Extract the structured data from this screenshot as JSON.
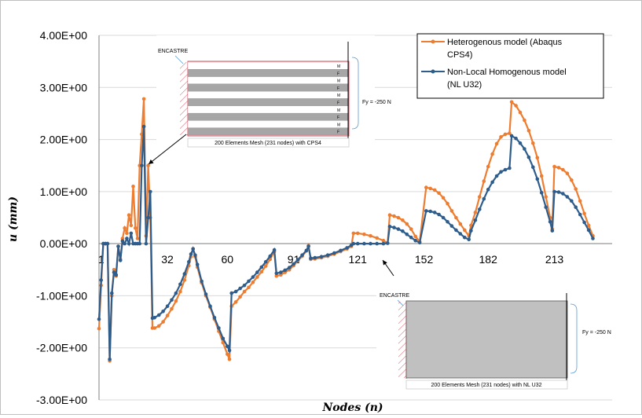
{
  "chart_data": {
    "type": "line",
    "xlabel": "Nodes (n)",
    "ylabel": "u (mm)",
    "ylim": [
      -3,
      4
    ],
    "xlim": [
      0,
      240
    ],
    "yticks": [
      {
        "v": 4,
        "label": "4.00E+00"
      },
      {
        "v": 3,
        "label": "3.00E+00"
      },
      {
        "v": 2,
        "label": "2.00E+00"
      },
      {
        "v": 1,
        "label": "1.00E+00"
      },
      {
        "v": 0,
        "label": "0.00E+00"
      },
      {
        "v": -1,
        "label": "-1.00E+00"
      },
      {
        "v": -2,
        "label": "-2.00E+00"
      },
      {
        "v": -3,
        "label": "-3.00E+00"
      }
    ],
    "xticks": [
      {
        "v": 1,
        "label": "1"
      },
      {
        "v": 32,
        "label": "32"
      },
      {
        "v": 60,
        "label": "60"
      },
      {
        "v": 91,
        "label": "91"
      },
      {
        "v": 121,
        "label": "121"
      },
      {
        "v": 152,
        "label": "152"
      },
      {
        "v": 182,
        "label": "182"
      },
      {
        "v": 213,
        "label": "213"
      }
    ],
    "grid": "horizontal",
    "legend_position": "top-right",
    "series": [
      {
        "name": "Heterogenous model (Abaqus CPS4)",
        "color": "#ED7D31",
        "points": [
          [
            0,
            -1.63
          ],
          [
            1,
            -0.8
          ],
          [
            2,
            0
          ],
          [
            3,
            0
          ],
          [
            4,
            0
          ],
          [
            5,
            -2.25
          ],
          [
            6,
            -1.0
          ],
          [
            7,
            -0.5
          ],
          [
            8,
            -0.62
          ],
          [
            9,
            -0.05
          ],
          [
            10,
            -0.3
          ],
          [
            11,
            0.1
          ],
          [
            12,
            0.3
          ],
          [
            13,
            0.2
          ],
          [
            14,
            0.55
          ],
          [
            15,
            0.35
          ],
          [
            16,
            1.1
          ],
          [
            17,
            0.3
          ],
          [
            18,
            0.1
          ],
          [
            19,
            1.5
          ],
          [
            20,
            2.1
          ],
          [
            21,
            2.78
          ],
          [
            22,
            0.15
          ],
          [
            23,
            1.5
          ],
          [
            24,
            0.5
          ],
          [
            25,
            -1.62
          ],
          [
            26,
            -1.62
          ],
          [
            28,
            -1.58
          ],
          [
            30,
            -1.5
          ],
          [
            32,
            -1.38
          ],
          [
            34,
            -1.25
          ],
          [
            36,
            -1.1
          ],
          [
            38,
            -0.92
          ],
          [
            40,
            -0.7
          ],
          [
            42,
            -0.42
          ],
          [
            43,
            -0.25
          ],
          [
            44,
            -0.1
          ],
          [
            45,
            -0.25
          ],
          [
            46,
            -0.45
          ],
          [
            48,
            -0.75
          ],
          [
            50,
            -1.0
          ],
          [
            52,
            -1.22
          ],
          [
            54,
            -1.45
          ],
          [
            56,
            -1.68
          ],
          [
            58,
            -1.9
          ],
          [
            60,
            -2.12
          ],
          [
            61,
            -2.22
          ],
          [
            62,
            -1.2
          ],
          [
            64,
            -1.12
          ],
          [
            66,
            -1.02
          ],
          [
            68,
            -0.92
          ],
          [
            70,
            -0.84
          ],
          [
            72,
            -0.74
          ],
          [
            74,
            -0.64
          ],
          [
            76,
            -0.54
          ],
          [
            78,
            -0.43
          ],
          [
            80,
            -0.3
          ],
          [
            82,
            -0.15
          ],
          [
            83,
            -0.62
          ],
          [
            85,
            -0.6
          ],
          [
            87,
            -0.55
          ],
          [
            89,
            -0.5
          ],
          [
            91,
            -0.42
          ],
          [
            93,
            -0.33
          ],
          [
            95,
            -0.24
          ],
          [
            97,
            -0.14
          ],
          [
            98,
            -0.04
          ],
          [
            99,
            -0.3
          ],
          [
            101,
            -0.29
          ],
          [
            104,
            -0.27
          ],
          [
            107,
            -0.24
          ],
          [
            110,
            -0.2
          ],
          [
            113,
            -0.15
          ],
          [
            116,
            -0.1
          ],
          [
            118,
            -0.05
          ],
          [
            119,
            0.2
          ],
          [
            121,
            0.2
          ],
          [
            124,
            0.18
          ],
          [
            127,
            0.15
          ],
          [
            130,
            0.11
          ],
          [
            133,
            0.06
          ],
          [
            135,
            0.01
          ],
          [
            136,
            0.55
          ],
          [
            138,
            0.53
          ],
          [
            140,
            0.5
          ],
          [
            142,
            0.45
          ],
          [
            144,
            0.38
          ],
          [
            146,
            0.28
          ],
          [
            148,
            0.14
          ],
          [
            150,
            0.04
          ],
          [
            153,
            1.08
          ],
          [
            155,
            1.06
          ],
          [
            157,
            1.03
          ],
          [
            159,
            0.97
          ],
          [
            161,
            0.88
          ],
          [
            163,
            0.77
          ],
          [
            165,
            0.63
          ],
          [
            167,
            0.5
          ],
          [
            169,
            0.38
          ],
          [
            171,
            0.26
          ],
          [
            173,
            0.15
          ],
          [
            174,
            0.35
          ],
          [
            176,
            0.6
          ],
          [
            178,
            0.9
          ],
          [
            180,
            1.2
          ],
          [
            182,
            1.48
          ],
          [
            184,
            1.72
          ],
          [
            186,
            1.92
          ],
          [
            188,
            2.05
          ],
          [
            190,
            2.1
          ],
          [
            192,
            2.12
          ],
          [
            193,
            2.72
          ],
          [
            195,
            2.65
          ],
          [
            197,
            2.52
          ],
          [
            199,
            2.37
          ],
          [
            201,
            2.17
          ],
          [
            203,
            1.93
          ],
          [
            205,
            1.65
          ],
          [
            207,
            1.3
          ],
          [
            209,
            0.9
          ],
          [
            211,
            0.5
          ],
          [
            212,
            0.28
          ],
          [
            213,
            1.48
          ],
          [
            215,
            1.46
          ],
          [
            217,
            1.42
          ],
          [
            219,
            1.35
          ],
          [
            221,
            1.22
          ],
          [
            223,
            1.05
          ],
          [
            225,
            0.82
          ],
          [
            227,
            0.58
          ],
          [
            229,
            0.35
          ],
          [
            231,
            0.15
          ]
        ]
      },
      {
        "name": "Non-Local Homogenous model (NL U32)",
        "color": "#2E5D8C",
        "points": [
          [
            0,
            -1.45
          ],
          [
            1,
            -0.7
          ],
          [
            2,
            0
          ],
          [
            3,
            0
          ],
          [
            4,
            0
          ],
          [
            5,
            -2.22
          ],
          [
            6,
            -0.95
          ],
          [
            7,
            -0.55
          ],
          [
            8,
            -0.6
          ],
          [
            9,
            -0.05
          ],
          [
            10,
            -0.32
          ],
          [
            11,
            0.05
          ],
          [
            12,
            0.0
          ],
          [
            13,
            0.1
          ],
          [
            14,
            0.0
          ],
          [
            15,
            0.2
          ],
          [
            16,
            0.0
          ],
          [
            17,
            0.0
          ],
          [
            18,
            0.0
          ],
          [
            19,
            0.0
          ],
          [
            20,
            1.5
          ],
          [
            21,
            2.25
          ],
          [
            22,
            0.0
          ],
          [
            23,
            0.5
          ],
          [
            24,
            1.0
          ],
          [
            25,
            -1.43
          ],
          [
            26,
            -1.42
          ],
          [
            28,
            -1.37
          ],
          [
            30,
            -1.3
          ],
          [
            32,
            -1.2
          ],
          [
            34,
            -1.08
          ],
          [
            36,
            -0.95
          ],
          [
            38,
            -0.78
          ],
          [
            40,
            -0.58
          ],
          [
            42,
            -0.35
          ],
          [
            43,
            -0.2
          ],
          [
            44,
            -0.1
          ],
          [
            45,
            -0.22
          ],
          [
            46,
            -0.4
          ],
          [
            48,
            -0.72
          ],
          [
            50,
            -0.97
          ],
          [
            52,
            -1.2
          ],
          [
            54,
            -1.42
          ],
          [
            56,
            -1.62
          ],
          [
            58,
            -1.82
          ],
          [
            60,
            -1.97
          ],
          [
            61,
            -2.05
          ],
          [
            62,
            -0.95
          ],
          [
            64,
            -0.92
          ],
          [
            66,
            -0.86
          ],
          [
            68,
            -0.8
          ],
          [
            70,
            -0.72
          ],
          [
            72,
            -0.64
          ],
          [
            74,
            -0.55
          ],
          [
            76,
            -0.45
          ],
          [
            78,
            -0.35
          ],
          [
            80,
            -0.24
          ],
          [
            82,
            -0.12
          ],
          [
            83,
            -0.57
          ],
          [
            85,
            -0.55
          ],
          [
            87,
            -0.51
          ],
          [
            89,
            -0.46
          ],
          [
            91,
            -0.39
          ],
          [
            93,
            -0.31
          ],
          [
            95,
            -0.22
          ],
          [
            97,
            -0.13
          ],
          [
            98,
            -0.05
          ],
          [
            99,
            -0.28
          ],
          [
            101,
            -0.27
          ],
          [
            104,
            -0.25
          ],
          [
            107,
            -0.22
          ],
          [
            110,
            -0.18
          ],
          [
            113,
            -0.13
          ],
          [
            116,
            -0.08
          ],
          [
            118,
            -0.03
          ],
          [
            119,
            0.0
          ],
          [
            121,
            0.0
          ],
          [
            124,
            0.0
          ],
          [
            127,
            0.0
          ],
          [
            130,
            0.0
          ],
          [
            133,
            0.0
          ],
          [
            135,
            0.01
          ],
          [
            136,
            0.33
          ],
          [
            138,
            0.31
          ],
          [
            140,
            0.28
          ],
          [
            142,
            0.24
          ],
          [
            144,
            0.18
          ],
          [
            146,
            0.12
          ],
          [
            148,
            0.06
          ],
          [
            150,
            0.02
          ],
          [
            153,
            0.63
          ],
          [
            155,
            0.62
          ],
          [
            157,
            0.6
          ],
          [
            159,
            0.56
          ],
          [
            161,
            0.5
          ],
          [
            163,
            0.42
          ],
          [
            165,
            0.34
          ],
          [
            167,
            0.26
          ],
          [
            169,
            0.19
          ],
          [
            171,
            0.12
          ],
          [
            173,
            0.08
          ],
          [
            174,
            0.25
          ],
          [
            176,
            0.45
          ],
          [
            178,
            0.66
          ],
          [
            180,
            0.86
          ],
          [
            182,
            1.04
          ],
          [
            184,
            1.18
          ],
          [
            186,
            1.3
          ],
          [
            188,
            1.38
          ],
          [
            190,
            1.42
          ],
          [
            192,
            1.45
          ],
          [
            193,
            2.07
          ],
          [
            195,
            2.02
          ],
          [
            197,
            1.93
          ],
          [
            199,
            1.82
          ],
          [
            201,
            1.66
          ],
          [
            203,
            1.47
          ],
          [
            205,
            1.24
          ],
          [
            207,
            0.98
          ],
          [
            209,
            0.7
          ],
          [
            211,
            0.42
          ],
          [
            212,
            0.25
          ],
          [
            213,
            1.0
          ],
          [
            215,
            0.99
          ],
          [
            217,
            0.96
          ],
          [
            219,
            0.9
          ],
          [
            221,
            0.82
          ],
          [
            223,
            0.7
          ],
          [
            225,
            0.56
          ],
          [
            227,
            0.41
          ],
          [
            229,
            0.26
          ],
          [
            231,
            0.1
          ]
        ]
      }
    ],
    "legend": {
      "heterogenous_line1": "Heterogenous model (Abaqus",
      "heterogenous_line2": "CPS4)",
      "nonlocal_line1": "Non-Local Homogenous model",
      "nonlocal_line2": "(NL U32)"
    },
    "inset_top": {
      "encastre": "ENCASTRE",
      "force": "Fy = -250 N",
      "caption": "200 Elements Mesh (231 nodes) with CPS4",
      "layer_labels": [
        "M",
        "F",
        "M",
        "F",
        "M",
        "F",
        "M",
        "F",
        "M",
        "F"
      ]
    },
    "inset_bottom": {
      "encastre": "ENCASTRE",
      "force": "Fy = -250 N",
      "caption": "200 Elements Mesh (231 nodes) with NL U32"
    }
  }
}
